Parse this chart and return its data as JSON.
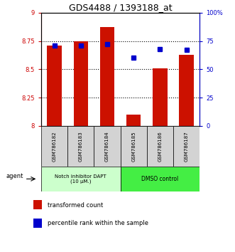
{
  "title": "GDS4488 / 1393188_at",
  "categories": [
    "GSM786182",
    "GSM786183",
    "GSM786184",
    "GSM786185",
    "GSM786186",
    "GSM786187"
  ],
  "bar_values": [
    8.71,
    8.75,
    8.87,
    8.1,
    8.51,
    8.63
  ],
  "percentile_values": [
    71,
    71,
    72,
    60,
    68,
    67
  ],
  "ylim_left": [
    8.0,
    9.0
  ],
  "ylim_right": [
    0,
    100
  ],
  "yticks_left": [
    8.0,
    8.25,
    8.5,
    8.75,
    9.0
  ],
  "ytick_labels_left": [
    "8",
    "8.25",
    "8.5",
    "8.75",
    "9"
  ],
  "yticks_right": [
    0,
    25,
    50,
    75,
    100
  ],
  "ytick_labels_right": [
    "0",
    "25",
    "50",
    "75",
    "100%"
  ],
  "bar_color": "#cc1100",
  "dot_color": "#0000cc",
  "background_color": "#ffffff",
  "bar_bottom": 8.0,
  "group1_label": "Notch inhibitor DAPT\n(10 μM.)",
  "group2_label": "DMSO control",
  "group1_color": "#ccffcc",
  "group2_color": "#44ee44",
  "agent_label": "agent",
  "legend_bar_label": "transformed count",
  "legend_dot_label": "percentile rank within the sample",
  "tick_label_color_left": "#cc0000",
  "tick_label_color_right": "#0000cc",
  "title_fontsize": 9,
  "axis_fontsize": 6
}
